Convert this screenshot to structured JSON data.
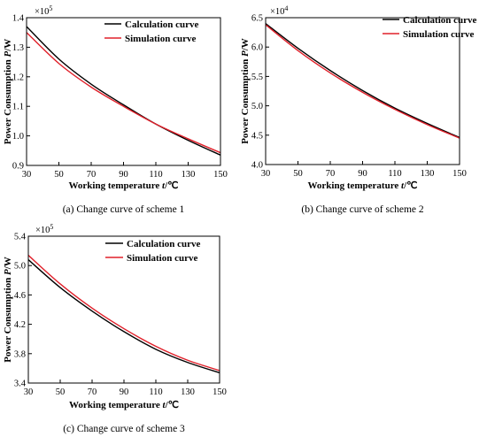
{
  "chart_data": [
    {
      "type": "line",
      "caption": "(a)  Change curve of scheme 1",
      "xlabel_prefix": "Working temperature ",
      "xlabel_var": "t",
      "xlabel_suffix": "/℃",
      "ylabel_prefix": "Power Consumption ",
      "ylabel_var": "P",
      "ylabel_suffix": "/W",
      "y_multiplier_base": "×10",
      "y_multiplier_exp": "5",
      "xlim": [
        30,
        150
      ],
      "ylim": [
        0.9,
        1.4
      ],
      "xticks": [
        "30",
        "50",
        "70",
        "90",
        "110",
        "130",
        "150"
      ],
      "yticks": [
        "0.9",
        "1.0",
        "1.1",
        "1.2",
        "1.3",
        "1.4"
      ],
      "legend_position": "top-right",
      "series": [
        {
          "name": "Calculation curve",
          "color": "#000000",
          "x": [
            30,
            50,
            70,
            90,
            110,
            130,
            150
          ],
          "y": [
            1.37,
            1.26,
            1.175,
            1.105,
            1.04,
            0.985,
            0.935
          ]
        },
        {
          "name": "Simulation curve",
          "color": "#e0202a",
          "x": [
            30,
            50,
            70,
            90,
            110,
            130,
            150
          ],
          "y": [
            1.35,
            1.245,
            1.165,
            1.1,
            1.04,
            0.99,
            0.943
          ]
        }
      ]
    },
    {
      "type": "line",
      "caption": "(b)  Change curve of scheme 2",
      "xlabel_prefix": "Working temperature ",
      "xlabel_var": "t",
      "xlabel_suffix": "/℃",
      "ylabel_prefix": "Power Consumption ",
      "ylabel_var": "P",
      "ylabel_suffix": "/W",
      "y_multiplier_base": "×10",
      "y_multiplier_exp": "4",
      "xlim": [
        30,
        150
      ],
      "ylim": [
        4.0,
        6.5
      ],
      "xticks": [
        "30",
        "50",
        "70",
        "90",
        "110",
        "130",
        "150"
      ],
      "yticks": [
        "4.0",
        "4.5",
        "5.0",
        "5.5",
        "6.0",
        "6.5"
      ],
      "legend_position": "top-right",
      "series": [
        {
          "name": "Calculation curve",
          "color": "#000000",
          "x": [
            30,
            50,
            70,
            90,
            110,
            130,
            150
          ],
          "y": [
            6.4,
            5.98,
            5.6,
            5.26,
            4.96,
            4.7,
            4.46
          ]
        },
        {
          "name": "Simulation curve",
          "color": "#e0202a",
          "x": [
            30,
            50,
            70,
            90,
            110,
            130,
            150
          ],
          "y": [
            6.38,
            5.94,
            5.56,
            5.23,
            4.94,
            4.68,
            4.45
          ]
        }
      ]
    },
    {
      "type": "line",
      "caption": "(c)  Change curve of scheme 3",
      "xlabel_prefix": "Working temperature ",
      "xlabel_var": "t",
      "xlabel_suffix": "/℃",
      "ylabel_prefix": "Power Consumption ",
      "ylabel_var": "P",
      "ylabel_suffix": "/W",
      "y_multiplier_base": "×10",
      "y_multiplier_exp": "5",
      "xlim": [
        30,
        150
      ],
      "ylim": [
        3.4,
        5.4
      ],
      "xticks": [
        "30",
        "50",
        "70",
        "90",
        "110",
        "130",
        "150"
      ],
      "yticks": [
        "3.4",
        "3.8",
        "4.2",
        "4.6",
        "5.0",
        "5.4"
      ],
      "legend_position": "top-right",
      "series": [
        {
          "name": "Calculation curve",
          "color": "#000000",
          "x": [
            30,
            50,
            70,
            90,
            110,
            130,
            150
          ],
          "y": [
            5.08,
            4.7,
            4.38,
            4.1,
            3.86,
            3.68,
            3.54
          ]
        },
        {
          "name": "Simulation curve",
          "color": "#e0202a",
          "x": [
            30,
            50,
            70,
            90,
            110,
            130,
            150
          ],
          "y": [
            5.14,
            4.75,
            4.42,
            4.14,
            3.9,
            3.71,
            3.57
          ]
        }
      ]
    }
  ]
}
